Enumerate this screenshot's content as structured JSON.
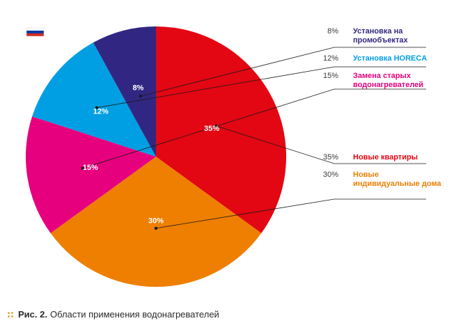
{
  "chart_data": {
    "type": "pie",
    "start_angle_deg": 0,
    "direction": "clockwise",
    "slices": [
      {
        "label": "Новые квартиры",
        "value": 35,
        "value_label": "35%",
        "legend_lines": [
          "Новые квартиры"
        ],
        "color": "#e30613"
      },
      {
        "label": "Новые индивидуальные дома",
        "value": 30,
        "value_label": "30%",
        "legend_lines": [
          "Новые",
          "индивидуальные дома"
        ],
        "color": "#ee7f00"
      },
      {
        "label": "Замена старых водонагревателей",
        "value": 15,
        "value_label": "15%",
        "legend_lines": [
          "Замена старых",
          "водонагревателей"
        ],
        "color": "#e6007e"
      },
      {
        "label": "Установка HORECA",
        "value": 12,
        "value_label": "12%",
        "legend_lines": [
          "Установка HORECA"
        ],
        "color": "#009fe3"
      },
      {
        "label": "Установка на промобъектах",
        "value": 8,
        "value_label": "8%",
        "legend_lines": [
          "Установка на",
          "промобъектах"
        ],
        "color": "#312783"
      }
    ]
  },
  "flag": {
    "colors": [
      "#ffffff",
      "#0039a6",
      "#d52b1e"
    ]
  },
  "caption": {
    "figure_number": "Рис. 2.",
    "text": "Области применения водонагревателей"
  }
}
